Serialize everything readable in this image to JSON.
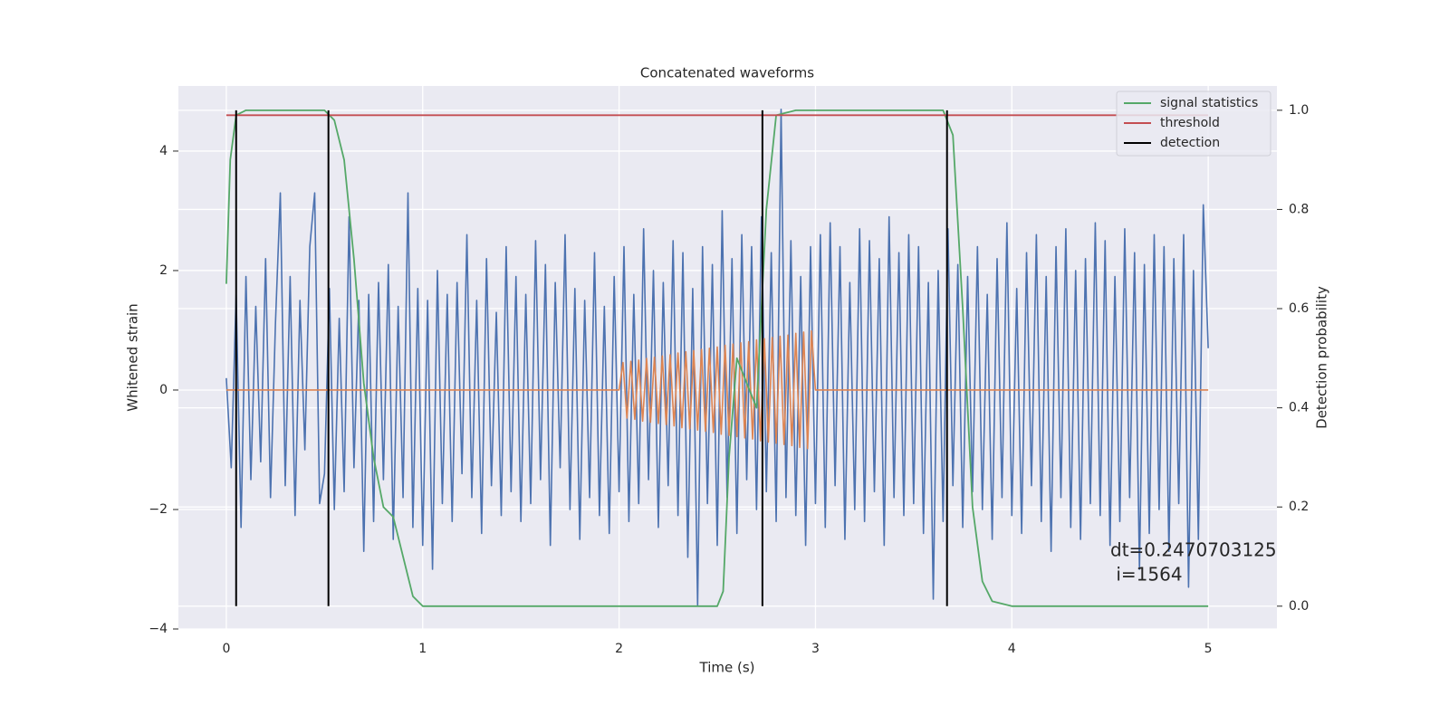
{
  "chart_data": {
    "type": "line",
    "title": "Concatenated waveforms",
    "xlabel": "Time (s)",
    "ylabel": "Whitened strain",
    "y2label": "Detection probability",
    "xlim": [
      -0.244,
      5.35
    ],
    "ylim": [
      -4.0,
      5.09
    ],
    "y2lim": [
      -0.046,
      1.049
    ],
    "xticks": [
      0,
      1,
      2,
      3,
      4,
      5
    ],
    "yticks": [
      {
        "value": -4,
        "label": "−4"
      },
      {
        "value": -2,
        "label": "−2"
      },
      0,
      2,
      4
    ],
    "y2ticks": [
      {
        "value": 0,
        "label": "0.0"
      },
      0.2,
      0.4,
      0.6,
      0.8,
      {
        "value": 1,
        "label": "1.0"
      }
    ],
    "grid": true,
    "legend": "upper right",
    "annotation": [
      "dt=0.2470703125",
      " i=1564"
    ],
    "series": [
      {
        "color": "#4c72b0",
        "x": [
          0,
          0.025,
          0.05,
          0.075,
          0.1,
          0.125,
          0.15,
          0.175,
          0.2,
          0.225,
          0.25,
          0.275,
          0.3,
          0.325,
          0.35,
          0.375,
          0.4,
          0.425,
          0.45,
          0.475,
          0.5,
          0.525,
          0.55,
          0.575,
          0.6,
          0.625,
          0.65,
          0.675,
          0.7,
          0.725,
          0.75,
          0.775,
          0.8,
          0.825,
          0.85,
          0.875,
          0.9,
          0.925,
          0.95,
          0.975,
          1,
          1.025,
          1.05,
          1.075,
          1.1,
          1.125,
          1.15,
          1.175,
          1.2,
          1.225,
          1.25,
          1.275,
          1.3,
          1.325,
          1.35,
          1.375,
          1.4,
          1.425,
          1.45,
          1.475,
          1.5,
          1.525,
          1.55,
          1.575,
          1.6,
          1.625,
          1.65,
          1.675,
          1.7,
          1.725,
          1.75,
          1.775,
          1.8,
          1.825,
          1.85,
          1.875,
          1.9,
          1.925,
          1.95,
          1.975,
          2,
          2.025,
          2.05,
          2.075,
          2.1,
          2.125,
          2.15,
          2.175,
          2.2,
          2.225,
          2.25,
          2.275,
          2.3,
          2.325,
          2.35,
          2.375,
          2.4,
          2.425,
          2.45,
          2.475,
          2.5,
          2.525,
          2.55,
          2.575,
          2.6,
          2.625,
          2.65,
          2.675,
          2.7,
          2.725,
          2.75,
          2.775,
          2.8,
          2.825,
          2.85,
          2.875,
          2.9,
          2.925,
          2.95,
          2.975,
          3,
          3.025,
          3.05,
          3.075,
          3.1,
          3.125,
          3.15,
          3.175,
          3.2,
          3.225,
          3.25,
          3.275,
          3.3,
          3.325,
          3.35,
          3.375,
          3.4,
          3.425,
          3.45,
          3.475,
          3.5,
          3.525,
          3.55,
          3.575,
          3.6,
          3.625,
          3.65,
          3.675,
          3.7,
          3.725,
          3.75,
          3.775,
          3.8,
          3.825,
          3.85,
          3.875,
          3.9,
          3.925,
          3.95,
          3.975,
          4,
          4.025,
          4.05,
          4.075,
          4.1,
          4.125,
          4.15,
          4.175,
          4.2,
          4.225,
          4.25,
          4.275,
          4.3,
          4.325,
          4.35,
          4.375,
          4.4,
          4.425,
          4.45,
          4.475,
          4.5,
          4.525,
          4.55,
          4.575,
          4.6,
          4.625,
          4.65,
          4.675,
          4.7,
          4.725,
          4.75,
          4.775,
          4.8,
          4.825,
          4.85,
          4.875,
          4.9,
          4.925,
          4.95,
          4.975,
          5
        ],
        "values": [
          0.2,
          -1.3,
          1.6,
          -2.3,
          1.9,
          -1.5,
          1.4,
          -1.2,
          2.2,
          -1.8,
          1.1,
          3.3,
          -1.6,
          1.9,
          -2.1,
          1.5,
          -1.0,
          2.4,
          3.3,
          -1.9,
          -1.4,
          1.7,
          -2.0,
          1.2,
          -1.7,
          2.9,
          -1.3,
          1.5,
          -2.7,
          1.6,
          -2.2,
          1.8,
          -1.5,
          2.1,
          -2.5,
          1.4,
          -1.8,
          3.3,
          -2.3,
          1.7,
          -2.6,
          1.5,
          -3.0,
          2.0,
          -1.9,
          1.6,
          -2.2,
          1.8,
          -1.4,
          2.6,
          -1.8,
          1.5,
          -2.4,
          2.2,
          -1.6,
          1.3,
          -2.1,
          2.4,
          -1.7,
          1.9,
          -2.2,
          1.6,
          -1.9,
          2.5,
          -1.5,
          2.1,
          -2.6,
          1.8,
          -1.3,
          2.6,
          -2.0,
          1.7,
          -2.5,
          1.5,
          -1.8,
          2.3,
          -2.1,
          1.4,
          -2.4,
          1.9,
          -1.7,
          2.4,
          -2.2,
          1.6,
          -1.9,
          2.7,
          -1.5,
          2.0,
          -2.3,
          1.8,
          -1.6,
          2.5,
          -2.1,
          2.3,
          -2.8,
          1.7,
          -3.6,
          2.4,
          -1.9,
          2.1,
          -2.6,
          3.0,
          -1.8,
          2.2,
          -2.4,
          2.6,
          -1.5,
          2.4,
          -2.0,
          2.9,
          -1.7,
          2.3,
          -2.2,
          4.7,
          -1.8,
          2.5,
          -2.1,
          1.9,
          -2.6,
          2.4,
          -1.9,
          2.6,
          -2.3,
          2.8,
          -1.6,
          2.4,
          -2.5,
          1.8,
          -2.0,
          2.7,
          -2.2,
          2.5,
          -1.7,
          2.2,
          -2.6,
          2.9,
          -1.8,
          2.3,
          -2.1,
          2.6,
          -1.9,
          2.4,
          -2.4,
          1.8,
          -3.5,
          2.0,
          -2.2,
          2.7,
          -1.6,
          2.1,
          -2.3,
          1.9,
          -1.7,
          2.4,
          -2.0,
          1.6,
          -2.5,
          2.2,
          -1.8,
          2.8,
          -2.1,
          1.7,
          -2.4,
          2.3,
          -1.6,
          2.6,
          -2.2,
          1.9,
          -2.7,
          2.4,
          -1.8,
          2.7,
          -2.3,
          2.0,
          -2.5,
          2.2,
          -1.9,
          2.8,
          -2.1,
          2.5,
          -2.6,
          1.9,
          -2.2,
          2.7,
          -1.8,
          2.3,
          -3.0,
          2.1,
          -2.4,
          2.6,
          -2.0,
          2.4,
          -2.7,
          2.2,
          -1.9,
          2.6,
          -3.3,
          2.0,
          -2.5,
          3.1,
          0.7
        ]
      },
      {
        "color": "#dd8452",
        "x": [
          0,
          2,
          2.02,
          2.04,
          2.06,
          2.08,
          2.1,
          2.12,
          2.14,
          2.16,
          2.18,
          2.2,
          2.22,
          2.24,
          2.26,
          2.28,
          2.3,
          2.32,
          2.34,
          2.36,
          2.38,
          2.4,
          2.42,
          2.44,
          2.46,
          2.48,
          2.5,
          2.52,
          2.54,
          2.56,
          2.58,
          2.6,
          2.62,
          2.64,
          2.66,
          2.68,
          2.7,
          2.72,
          2.74,
          2.76,
          2.78,
          2.8,
          2.82,
          2.84,
          2.86,
          2.88,
          2.9,
          2.92,
          2.94,
          2.96,
          2.98,
          3,
          5
        ],
        "values": [
          0,
          0,
          0.46,
          -0.47,
          0.48,
          -0.49,
          0.5,
          -0.52,
          0.53,
          -0.54,
          0.55,
          -0.56,
          0.57,
          -0.58,
          0.59,
          -0.6,
          0.62,
          -0.63,
          0.64,
          -0.65,
          0.66,
          -0.67,
          0.68,
          -0.69,
          0.7,
          -0.71,
          0.72,
          -0.74,
          0.75,
          -0.76,
          0.77,
          -0.78,
          0.79,
          -0.8,
          0.81,
          -0.82,
          0.84,
          -0.85,
          0.86,
          -0.87,
          0.88,
          -0.89,
          0.9,
          -0.91,
          0.92,
          -0.93,
          0.95,
          -0.96,
          0.97,
          -0.98,
          0.99,
          0,
          0
        ]
      },
      {
        "name": "signal statistics",
        "color": "#55a868",
        "axis": "y2",
        "x": [
          0,
          0.02,
          0.05,
          0.1,
          0.5,
          0.55,
          0.6,
          0.65,
          0.7,
          0.75,
          0.8,
          0.85,
          0.9,
          0.95,
          1.0,
          1.5,
          2.0,
          2.5,
          2.53,
          2.56,
          2.6,
          2.65,
          2.7,
          2.75,
          2.8,
          2.9,
          3.65,
          3.7,
          3.75,
          3.8,
          3.85,
          3.9,
          4.0,
          5.0
        ],
        "values": [
          0.65,
          0.9,
          0.99,
          1.0,
          1.0,
          0.98,
          0.9,
          0.7,
          0.45,
          0.3,
          0.2,
          0.18,
          0.1,
          0.02,
          0,
          0,
          0,
          0,
          0.03,
          0.3,
          0.5,
          0.45,
          0.4,
          0.8,
          0.99,
          1.0,
          1.0,
          0.95,
          0.6,
          0.2,
          0.05,
          0.01,
          0,
          0
        ]
      },
      {
        "name": "threshold",
        "color": "#c44e52",
        "axis": "y2",
        "x": [
          0,
          5
        ],
        "values": [
          0.99,
          0.99
        ]
      },
      {
        "name": "detection",
        "color": "#000000",
        "axis": "y2",
        "style": "vlines",
        "x": [
          0.05,
          0.52,
          2.73,
          3.67
        ],
        "values": [
          1,
          1,
          1,
          1
        ]
      }
    ]
  }
}
